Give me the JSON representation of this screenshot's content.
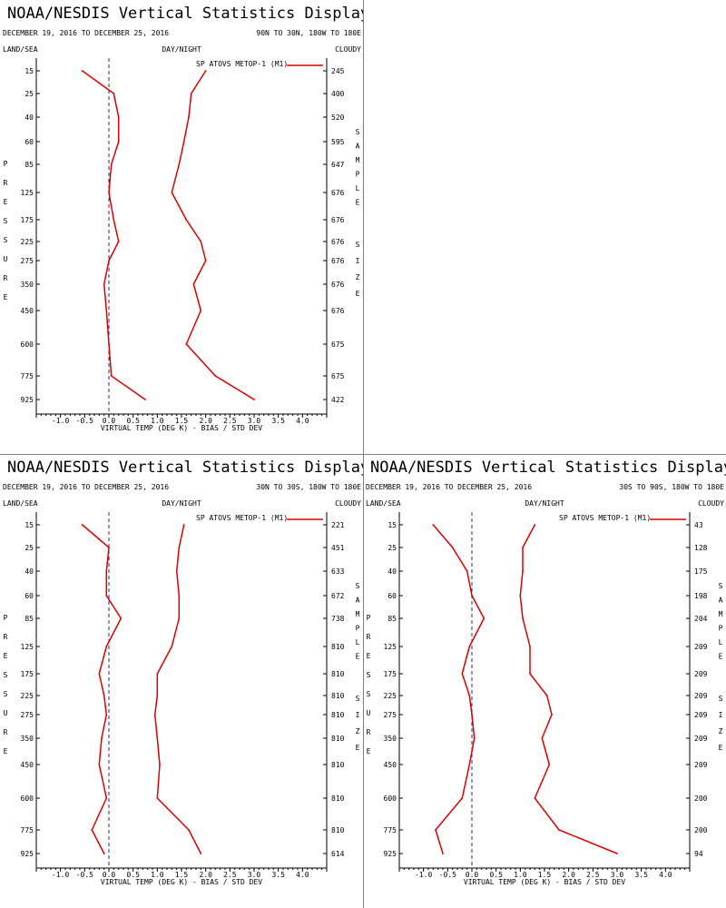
{
  "colors": {
    "series": "#dd0000",
    "axis": "#000000",
    "zero_line": "#2a2a70",
    "divider": "#808080"
  },
  "shared": {
    "title": "NOAA/NESDIS Vertical Statistics Display",
    "dates": "DECEMBER 19, 2016 TO DECEMBER 25, 2016",
    "land_sea": "LAND/SEA",
    "day_night": "DAY/NIGHT",
    "cloudy": "CLOUDY",
    "pressure_letters": [
      "P",
      "R",
      "E",
      "S",
      "S",
      "U",
      "R",
      "E"
    ],
    "sample_letters": [
      "S",
      "A",
      "M",
      "P",
      "L",
      "E"
    ],
    "size_letters": [
      "S",
      "I",
      "Z",
      "E"
    ],
    "xlabel": "VIRTUAL TEMP (DEG K) - BIAS / STD DEV",
    "legend": "SP ATOVS METOP-1 (M1)",
    "x_ticks": [
      "-1.0",
      "-0.5",
      "0.0",
      "0.5",
      "1.0",
      "1.5",
      "2.0",
      "2.5",
      "3.0",
      "3.5",
      "4.0"
    ],
    "p_ticks": [
      "15",
      "25",
      "40",
      "60",
      "85",
      "125",
      "175",
      "225",
      "275",
      "350",
      "450",
      "600",
      "775",
      "925"
    ]
  },
  "panels": [
    {
      "region": "90N TO 30N, 180W TO 180E",
      "sample_size": [
        "245",
        "400",
        "520",
        "595",
        "647",
        "676",
        "676",
        "676",
        "676",
        "676",
        "676",
        "675",
        "675",
        "422"
      ]
    },
    {
      "region": "30N TO 30S, 180W TO 180E",
      "sample_size": [
        "221",
        "451",
        "633",
        "672",
        "738",
        "810",
        "810",
        "810",
        "810",
        "810",
        "810",
        "810",
        "810",
        "614"
      ]
    },
    {
      "region": "30S TO 90S, 180W TO 180E",
      "sample_size": [
        "43",
        "128",
        "175",
        "198",
        "204",
        "209",
        "209",
        "209",
        "209",
        "209",
        "209",
        "200",
        "200",
        "94"
      ]
    }
  ],
  "chart_data": [
    {
      "type": "line",
      "title": "NOAA/NESDIS Vertical Statistics Display",
      "subtitle": "90N TO 30N, 180W TO 180E",
      "xlabel": "VIRTUAL TEMP (DEG K) - BIAS / STD DEV",
      "ylabel": "PRESSURE",
      "xlim": [
        -1.5,
        4.5
      ],
      "y_categories": [
        "15",
        "25",
        "40",
        "60",
        "85",
        "125",
        "175",
        "225",
        "275",
        "350",
        "450",
        "600",
        "775",
        "925"
      ],
      "series": [
        {
          "name": "SP ATOVS METOP-1 (M1)",
          "role": "bias",
          "values": [
            -0.55,
            0.1,
            0.2,
            0.2,
            0.05,
            0.0,
            0.1,
            0.2,
            0.0,
            -0.1,
            -0.05,
            0.0,
            0.05,
            0.75
          ]
        },
        {
          "name": "SP ATOVS METOP-1 (M1)",
          "role": "std_dev",
          "values": [
            2.0,
            1.7,
            1.65,
            1.55,
            1.45,
            1.3,
            1.6,
            1.9,
            2.0,
            1.75,
            1.9,
            1.6,
            2.2,
            3.0
          ]
        }
      ]
    },
    {
      "type": "line",
      "title": "NOAA/NESDIS Vertical Statistics Display",
      "subtitle": "30N TO 30S, 180W TO 180E",
      "xlabel": "VIRTUAL TEMP (DEG K) - BIAS / STD DEV",
      "ylabel": "PRESSURE",
      "xlim": [
        -1.5,
        4.5
      ],
      "y_categories": [
        "15",
        "25",
        "40",
        "60",
        "85",
        "125",
        "175",
        "225",
        "275",
        "350",
        "450",
        "600",
        "775",
        "925"
      ],
      "series": [
        {
          "name": "SP ATOVS METOP-1 (M1)",
          "role": "bias",
          "values": [
            -0.55,
            0.0,
            -0.05,
            -0.05,
            0.25,
            -0.05,
            -0.2,
            -0.1,
            -0.05,
            -0.15,
            -0.2,
            -0.05,
            -0.35,
            -0.1
          ]
        },
        {
          "name": "SP ATOVS METOP-1 (M1)",
          "role": "std_dev",
          "values": [
            1.55,
            1.45,
            1.4,
            1.45,
            1.45,
            1.3,
            1.0,
            1.0,
            0.95,
            1.0,
            1.05,
            1.0,
            1.65,
            1.9
          ]
        }
      ]
    },
    {
      "type": "line",
      "title": "NOAA/NESDIS Vertical Statistics Display",
      "subtitle": "30S TO 90S, 180W TO 180E",
      "xlabel": "VIRTUAL TEMP (DEG K) - BIAS / STD DEV",
      "ylabel": "PRESSURE",
      "xlim": [
        -1.5,
        4.5
      ],
      "y_categories": [
        "15",
        "25",
        "40",
        "60",
        "85",
        "125",
        "175",
        "225",
        "275",
        "350",
        "450",
        "600",
        "775",
        "925"
      ],
      "series": [
        {
          "name": "SP ATOVS METOP-1 (M1)",
          "role": "bias",
          "values": [
            -0.8,
            -0.4,
            -0.1,
            0.0,
            0.25,
            -0.05,
            -0.2,
            -0.05,
            0.0,
            0.05,
            -0.05,
            -0.2,
            -0.75,
            -0.6
          ]
        },
        {
          "name": "SP ATOVS METOP-1 (M1)",
          "role": "std_dev",
          "values": [
            1.3,
            1.05,
            1.05,
            1.0,
            1.05,
            1.2,
            1.2,
            1.55,
            1.65,
            1.45,
            1.6,
            1.3,
            1.8,
            3.0
          ]
        }
      ]
    }
  ]
}
